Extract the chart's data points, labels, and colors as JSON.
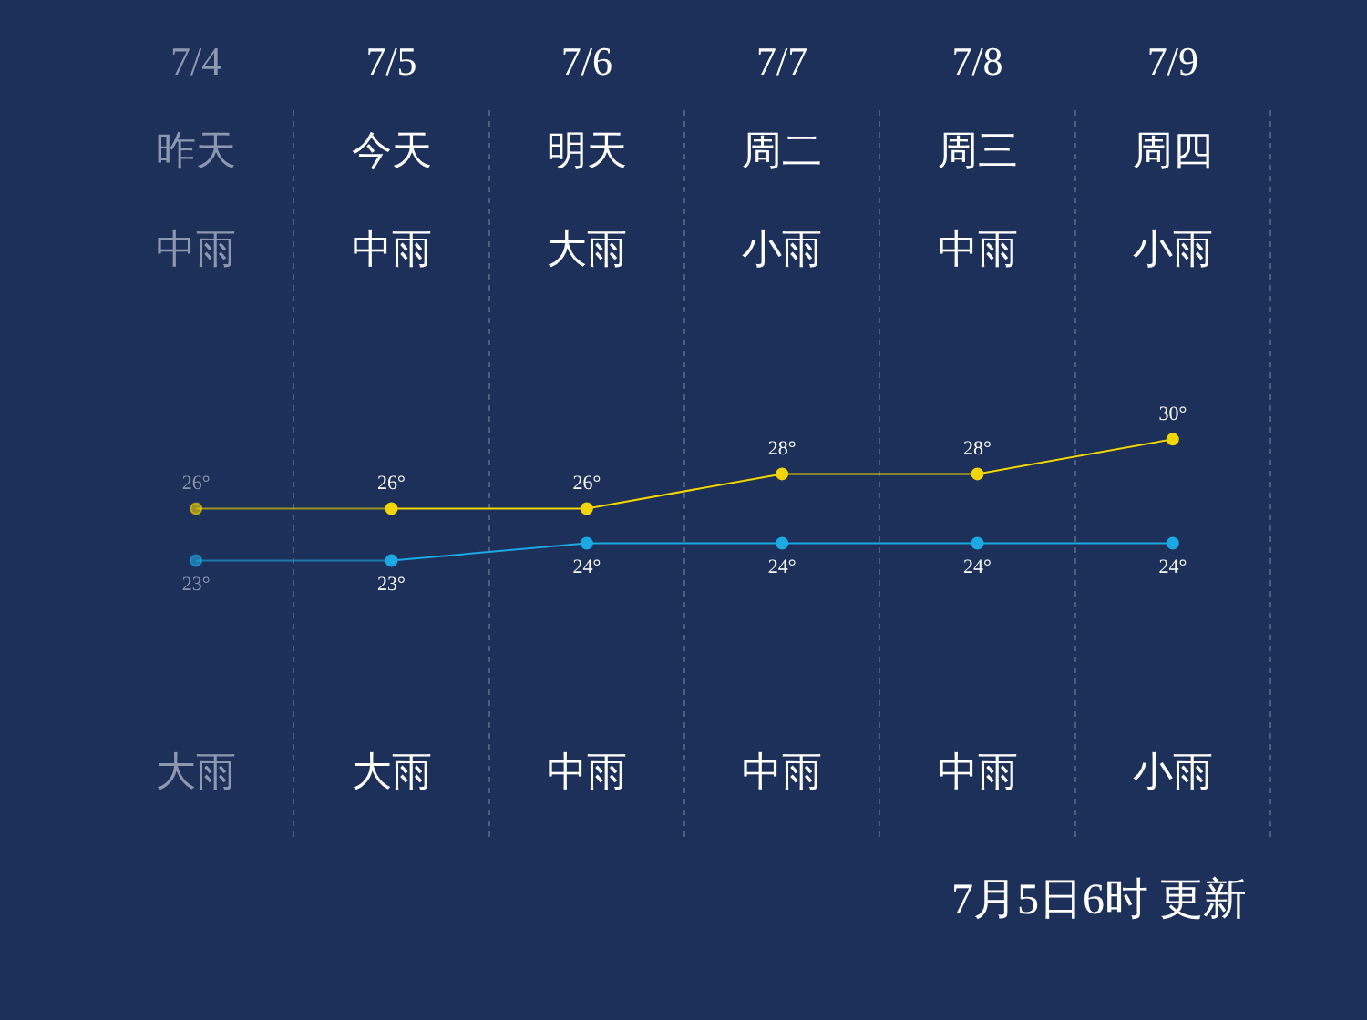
{
  "chart_data": {
    "type": "line",
    "categories": [
      "7/4",
      "7/5",
      "7/6",
      "7/7",
      "7/8",
      "7/9"
    ],
    "series": [
      {
        "color": "#f2d400",
        "values": [
          26,
          26,
          26,
          28,
          28,
          30
        ],
        "value_labels": [
          "26°",
          "26°",
          "26°",
          "28°",
          "28°",
          "30°"
        ]
      },
      {
        "color": "#1ca8e2",
        "values": [
          23,
          23,
          24,
          24,
          24,
          24
        ],
        "value_labels": [
          "23°",
          "23°",
          "24°",
          "24°",
          "24°",
          "24°"
        ]
      }
    ],
    "ylim": [
      7,
      49
    ],
    "grid": "x",
    "legend": false,
    "tick_labels": "x",
    "marker": "circle",
    "line_style": "solid",
    "annotations": [
      "昨天",
      "今天",
      "明天",
      "周二",
      "周三",
      "周四",
      "中雨",
      "中雨",
      "大雨",
      "小雨",
      "中雨",
      "小雨",
      "大雨",
      "大雨",
      "中雨",
      "中雨",
      "中雨",
      "小雨",
      "7月5日6时 更新"
    ]
  }
}
